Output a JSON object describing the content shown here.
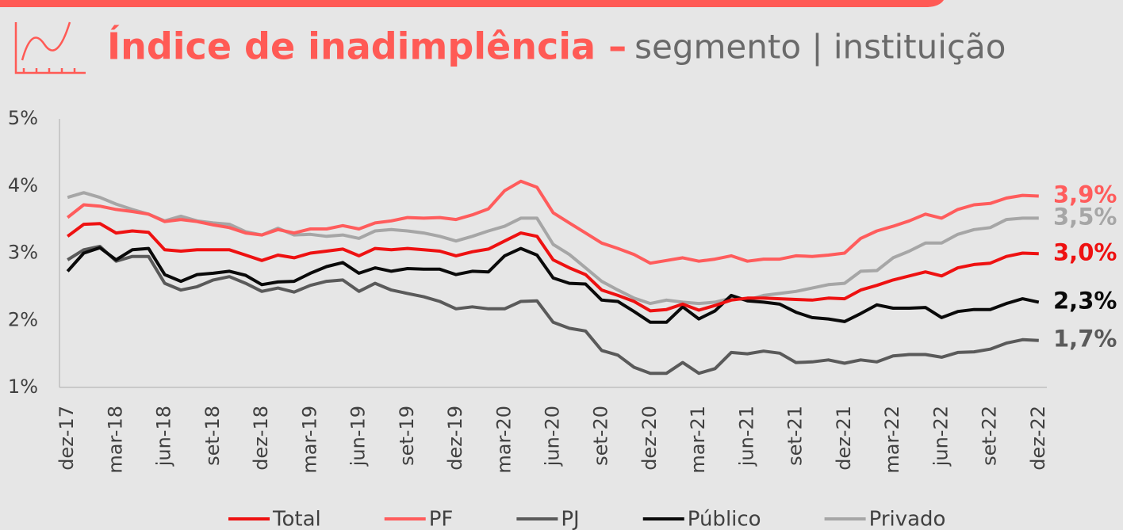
{
  "chart_data": {
    "type": "line",
    "title": "Índice de inadimplência –",
    "subtitle": "segmento | instituição",
    "categories": [
      "dez-17",
      null,
      null,
      "mar-18",
      null,
      null,
      "jun-18",
      null,
      null,
      "set-18",
      null,
      null,
      "dez-18",
      null,
      null,
      "mar-19",
      null,
      null,
      "jun-19",
      null,
      null,
      "set-19",
      null,
      null,
      "dez-19",
      null,
      null,
      "mar-20",
      null,
      null,
      "jun-20",
      null,
      null,
      "set-20",
      null,
      null,
      "dez-20",
      null,
      null,
      "mar-21",
      null,
      null,
      "jun-21",
      null,
      null,
      "set-21",
      null,
      null,
      "dez-21",
      null,
      null,
      "mar-22",
      null,
      null,
      "jun-22",
      null,
      null,
      "set-22",
      null,
      null,
      "dez-22"
    ],
    "ylim": [
      1,
      5
    ],
    "yticks": [
      {
        "value": 1,
        "label": "1%"
      },
      {
        "value": 2,
        "label": "2%"
      },
      {
        "value": 3,
        "label": "3%"
      },
      {
        "value": 4,
        "label": "4%"
      },
      {
        "value": 5,
        "label": "5%"
      }
    ],
    "grid": false,
    "legend": "bottom",
    "series": [
      {
        "name": "Total",
        "color": "#ee1111",
        "values": [
          3.25,
          3.43,
          3.44,
          3.3,
          3.33,
          3.31,
          3.05,
          3.03,
          3.05,
          3.05,
          3.05,
          2.97,
          2.89,
          2.97,
          2.93,
          3.0,
          3.03,
          3.06,
          2.96,
          3.07,
          3.05,
          3.07,
          3.05,
          3.03,
          2.96,
          3.02,
          3.06,
          3.18,
          3.3,
          3.25,
          2.9,
          2.78,
          2.68,
          2.45,
          2.37,
          2.28,
          2.14,
          2.16,
          2.24,
          2.15,
          2.22,
          2.3,
          2.33,
          2.33,
          2.32,
          2.31,
          2.3,
          2.33,
          2.32,
          2.45,
          2.52,
          2.6,
          2.66,
          2.72,
          2.66,
          2.78,
          2.83,
          2.85,
          2.95,
          3.0,
          2.99
        ],
        "value_labels": [
          null,
          null,
          null,
          null,
          null,
          null,
          null,
          null,
          null,
          null,
          null,
          null,
          null,
          null,
          null,
          null,
          null,
          null,
          null,
          null,
          null,
          null,
          null,
          null,
          null,
          null,
          null,
          null,
          null,
          null,
          null,
          null,
          null,
          null,
          null,
          null,
          null,
          null,
          null,
          null,
          null,
          null,
          null,
          null,
          null,
          null,
          null,
          null,
          null,
          null,
          null,
          null,
          null,
          null,
          null,
          null,
          null,
          null,
          null,
          null,
          "3,0%"
        ]
      },
      {
        "name": "PF",
        "color": "#ff5c5c",
        "values": [
          3.53,
          3.72,
          3.7,
          3.65,
          3.62,
          3.58,
          3.47,
          3.5,
          3.47,
          3.42,
          3.38,
          3.3,
          3.27,
          3.35,
          3.3,
          3.36,
          3.36,
          3.41,
          3.36,
          3.45,
          3.48,
          3.53,
          3.52,
          3.53,
          3.5,
          3.57,
          3.66,
          3.93,
          4.07,
          3.98,
          3.6,
          3.45,
          3.3,
          3.15,
          3.07,
          2.98,
          2.85,
          2.89,
          2.93,
          2.88,
          2.91,
          2.96,
          2.88,
          2.91,
          2.91,
          2.96,
          2.95,
          2.97,
          3.0,
          3.22,
          3.33,
          3.4,
          3.48,
          3.58,
          3.52,
          3.65,
          3.72,
          3.74,
          3.82,
          3.86,
          3.85
        ],
        "value_labels": [
          null,
          null,
          null,
          null,
          null,
          null,
          null,
          null,
          null,
          null,
          null,
          null,
          null,
          null,
          null,
          null,
          null,
          null,
          null,
          null,
          null,
          null,
          null,
          null,
          null,
          null,
          null,
          null,
          null,
          null,
          null,
          null,
          null,
          null,
          null,
          null,
          null,
          null,
          null,
          null,
          null,
          null,
          null,
          null,
          null,
          null,
          null,
          null,
          null,
          null,
          null,
          null,
          null,
          null,
          null,
          null,
          null,
          null,
          null,
          null,
          "3,9%"
        ]
      },
      {
        "name": "PJ",
        "color": "#5a5a5a",
        "values": [
          2.9,
          3.05,
          3.1,
          2.88,
          2.95,
          2.95,
          2.55,
          2.45,
          2.5,
          2.6,
          2.65,
          2.55,
          2.43,
          2.48,
          2.42,
          2.52,
          2.58,
          2.6,
          2.43,
          2.55,
          2.45,
          2.4,
          2.35,
          2.28,
          2.17,
          2.2,
          2.17,
          2.17,
          2.28,
          2.29,
          1.97,
          1.88,
          1.84,
          1.55,
          1.48,
          1.3,
          1.21,
          1.21,
          1.37,
          1.21,
          1.28,
          1.52,
          1.5,
          1.54,
          1.51,
          1.37,
          1.38,
          1.41,
          1.36,
          1.41,
          1.38,
          1.47,
          1.49,
          1.49,
          1.45,
          1.52,
          1.53,
          1.57,
          1.66,
          1.71,
          1.7
        ],
        "value_labels": [
          null,
          null,
          null,
          null,
          null,
          null,
          null,
          null,
          null,
          null,
          null,
          null,
          null,
          null,
          null,
          null,
          null,
          null,
          null,
          null,
          null,
          null,
          null,
          null,
          null,
          null,
          null,
          null,
          null,
          null,
          null,
          null,
          null,
          null,
          null,
          null,
          null,
          null,
          null,
          null,
          null,
          null,
          null,
          null,
          null,
          null,
          null,
          null,
          null,
          null,
          null,
          null,
          null,
          null,
          null,
          null,
          null,
          null,
          null,
          null,
          "1,7%"
        ]
      },
      {
        "name": "Público",
        "color": "#0a0a0a",
        "values": [
          2.73,
          3.0,
          3.08,
          2.9,
          3.05,
          3.07,
          2.68,
          2.58,
          2.68,
          2.7,
          2.73,
          2.67,
          2.53,
          2.57,
          2.58,
          2.7,
          2.8,
          2.86,
          2.7,
          2.78,
          2.73,
          2.77,
          2.76,
          2.76,
          2.68,
          2.73,
          2.72,
          2.96,
          3.07,
          2.97,
          2.63,
          2.55,
          2.54,
          2.3,
          2.28,
          2.13,
          1.97,
          1.97,
          2.2,
          2.02,
          2.14,
          2.37,
          2.29,
          2.27,
          2.24,
          2.12,
          2.04,
          2.02,
          1.98,
          2.1,
          2.23,
          2.18,
          2.18,
          2.19,
          2.04,
          2.13,
          2.16,
          2.16,
          2.25,
          2.32,
          2.27
        ],
        "value_labels": [
          null,
          null,
          null,
          null,
          null,
          null,
          null,
          null,
          null,
          null,
          null,
          null,
          null,
          null,
          null,
          null,
          null,
          null,
          null,
          null,
          null,
          null,
          null,
          null,
          null,
          null,
          null,
          null,
          null,
          null,
          null,
          null,
          null,
          null,
          null,
          null,
          null,
          null,
          null,
          null,
          null,
          null,
          null,
          null,
          null,
          null,
          null,
          null,
          null,
          null,
          null,
          null,
          null,
          null,
          null,
          null,
          null,
          null,
          null,
          null,
          "2,3%"
        ]
      },
      {
        "name": "Privado",
        "color": "#a6a6a6",
        "values": [
          3.83,
          3.9,
          3.83,
          3.73,
          3.65,
          3.58,
          3.48,
          3.55,
          3.48,
          3.45,
          3.43,
          3.32,
          3.27,
          3.37,
          3.27,
          3.28,
          3.25,
          3.27,
          3.22,
          3.33,
          3.35,
          3.33,
          3.3,
          3.25,
          3.18,
          3.25,
          3.33,
          3.4,
          3.52,
          3.52,
          3.13,
          2.98,
          2.78,
          2.58,
          2.45,
          2.33,
          2.25,
          2.3,
          2.27,
          2.25,
          2.27,
          2.33,
          2.3,
          2.37,
          2.4,
          2.43,
          2.48,
          2.53,
          2.55,
          2.73,
          2.74,
          2.93,
          3.03,
          3.15,
          3.15,
          3.28,
          3.35,
          3.38,
          3.5,
          3.52,
          3.52
        ],
        "value_labels": [
          null,
          null,
          null,
          null,
          null,
          null,
          null,
          null,
          null,
          null,
          null,
          null,
          null,
          null,
          null,
          null,
          null,
          null,
          null,
          null,
          null,
          null,
          null,
          null,
          null,
          null,
          null,
          null,
          null,
          null,
          null,
          null,
          null,
          null,
          null,
          null,
          null,
          null,
          null,
          null,
          null,
          null,
          null,
          null,
          null,
          null,
          null,
          null,
          null,
          null,
          null,
          null,
          null,
          null,
          null,
          null,
          null,
          null,
          null,
          null,
          "3,5%"
        ]
      }
    ]
  }
}
